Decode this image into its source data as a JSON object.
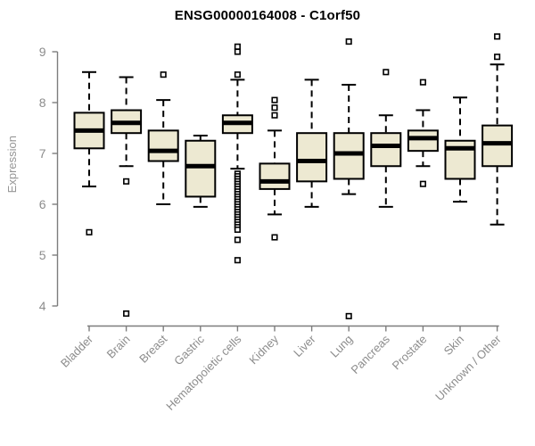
{
  "chart_data": {
    "type": "boxplot",
    "title": "ENSG00000164008 - C1orf50",
    "ylabel": "Expression",
    "ylim": [
      3.6,
      9.5
    ],
    "yticks": [
      4,
      5,
      6,
      7,
      8,
      9
    ],
    "grid": false,
    "categories": [
      "Bladder",
      "Brain",
      "Breast",
      "Gastric",
      "Hematopoietic cells",
      "Kidney",
      "Liver",
      "Lung",
      "Pancreas",
      "Prostate",
      "Skin",
      "Unknown / Other"
    ],
    "series": [
      {
        "category": "Bladder",
        "whisker_low": 6.35,
        "q1": 7.1,
        "median": 7.45,
        "q3": 7.8,
        "whisker_high": 8.6,
        "outliers": [
          5.45
        ]
      },
      {
        "category": "Brain",
        "whisker_low": 6.75,
        "q1": 7.4,
        "median": 7.6,
        "q3": 7.85,
        "whisker_high": 8.5,
        "outliers": [
          6.45,
          3.85
        ]
      },
      {
        "category": "Breast",
        "whisker_low": 6.0,
        "q1": 6.85,
        "median": 7.05,
        "q3": 7.45,
        "whisker_high": 8.05,
        "outliers": [
          8.55
        ]
      },
      {
        "category": "Gastric",
        "whisker_low": 5.95,
        "q1": 6.15,
        "median": 6.75,
        "q3": 7.25,
        "whisker_high": 7.35,
        "outliers": []
      },
      {
        "category": "Hematopoietic cells",
        "whisker_low": 6.7,
        "q1": 7.4,
        "median": 7.6,
        "q3": 7.75,
        "whisker_high": 8.45,
        "outliers": [
          9.1,
          9.0,
          8.55,
          6.6,
          6.55,
          6.5,
          6.45,
          6.4,
          6.35,
          6.3,
          6.25,
          6.2,
          6.15,
          6.1,
          6.05,
          6.0,
          5.95,
          5.9,
          5.85,
          5.8,
          5.75,
          5.7,
          5.65,
          5.6,
          5.55,
          5.5,
          5.3,
          4.9
        ]
      },
      {
        "category": "Kidney",
        "whisker_low": 5.8,
        "q1": 6.3,
        "median": 6.45,
        "q3": 6.8,
        "whisker_high": 7.45,
        "outliers": [
          8.05,
          7.9,
          7.75,
          5.35
        ]
      },
      {
        "category": "Liver",
        "whisker_low": 5.95,
        "q1": 6.45,
        "median": 6.85,
        "q3": 7.4,
        "whisker_high": 8.45,
        "outliers": []
      },
      {
        "category": "Lung",
        "whisker_low": 6.2,
        "q1": 6.5,
        "median": 7.0,
        "q3": 7.4,
        "whisker_high": 8.35,
        "outliers": [
          9.2,
          3.8
        ]
      },
      {
        "category": "Pancreas",
        "whisker_low": 5.95,
        "q1": 6.75,
        "median": 7.15,
        "q3": 7.4,
        "whisker_high": 7.75,
        "outliers": [
          8.6
        ]
      },
      {
        "category": "Prostate",
        "whisker_low": 6.75,
        "q1": 7.05,
        "median": 7.3,
        "q3": 7.45,
        "whisker_high": 7.85,
        "outliers": [
          8.4,
          6.4
        ]
      },
      {
        "category": "Skin",
        "whisker_low": 6.05,
        "q1": 6.5,
        "median": 7.1,
        "q3": 7.25,
        "whisker_high": 8.1,
        "outliers": []
      },
      {
        "category": "Unknown / Other",
        "whisker_low": 5.6,
        "q1": 6.75,
        "median": 7.2,
        "q3": 7.55,
        "whisker_high": 8.75,
        "outliers": [
          9.3,
          8.9
        ]
      }
    ],
    "colors": {
      "box_fill": "#EDE9D2",
      "box_border": "#000000",
      "median": "#000000",
      "axis": "#7d7d7d",
      "tick_label": "#8c8c8c",
      "title": "#000000",
      "background": "#ffffff"
    }
  }
}
